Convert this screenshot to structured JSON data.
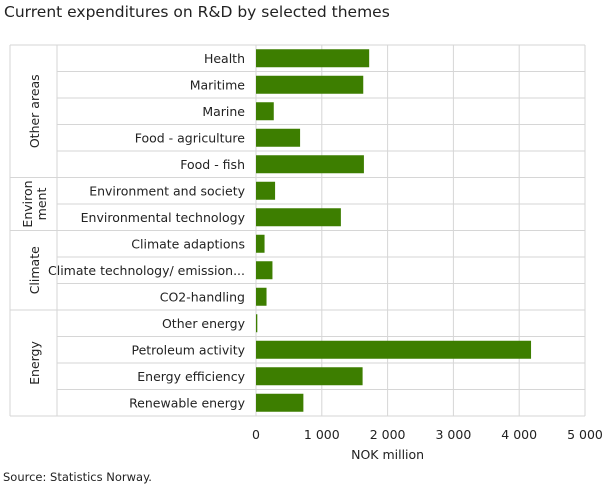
{
  "title": "Current expenditures on R&D by selected themes",
  "source": "Source: Statistics Norway.",
  "colors": {
    "bar": "#3d7e00",
    "grid": "#d6d6d6"
  },
  "chart_data": {
    "type": "bar",
    "orientation": "horizontal",
    "title": "Current expenditures on R&D by selected themes",
    "xlabel": "NOK million",
    "ylabel": "",
    "xlim": [
      0,
      5000
    ],
    "x_ticks": [
      0,
      1000,
      2000,
      3000,
      4000,
      5000
    ],
    "x_tick_labels": [
      "0",
      "1 000",
      "2 000",
      "3 000",
      "4 000",
      "5 000"
    ],
    "grid": true,
    "groups": [
      {
        "name": "Other areas",
        "label_lines": [
          "Other areas"
        ],
        "categories": [
          "Health",
          "Maritime",
          "Marine",
          "Food - agriculture",
          "Food - fish"
        ],
        "values": [
          1720,
          1630,
          270,
          670,
          1640
        ]
      },
      {
        "name": "Environment",
        "label_lines": [
          "Environ",
          "ment"
        ],
        "categories": [
          "Environment and society",
          "Environmental technology"
        ],
        "values": [
          290,
          1290
        ]
      },
      {
        "name": "Climate",
        "label_lines": [
          "Climate"
        ],
        "categories": [
          "Climate adaptions",
          "Climate technology/ emission...",
          "CO2-handling"
        ],
        "values": [
          130,
          250,
          160
        ]
      },
      {
        "name": "Energy",
        "label_lines": [
          "Energy"
        ],
        "categories": [
          "Other energy",
          "Petroleum activity",
          "Energy efficiency",
          "Renewable energy"
        ],
        "values": [
          20,
          4180,
          1620,
          720
        ]
      }
    ]
  }
}
